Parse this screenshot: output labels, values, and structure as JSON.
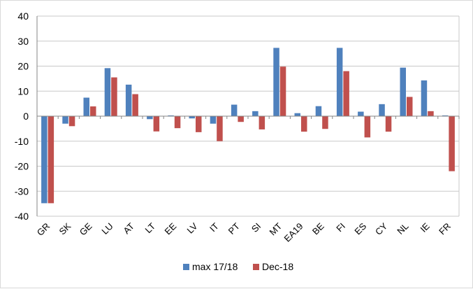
{
  "chart_data": {
    "type": "bar",
    "title": "",
    "xlabel": "",
    "ylabel": "",
    "ylim": [
      -40,
      40
    ],
    "yticks": [
      40,
      30,
      20,
      10,
      0,
      -10,
      -20,
      -30,
      -40
    ],
    "grid": true,
    "legend_position": "bottom",
    "categories": [
      "GR",
      "SK",
      "GE",
      "LU",
      "AT",
      "LT",
      "EE",
      "LV",
      "IT",
      "PT",
      "SI",
      "MT",
      "EA19",
      "BE",
      "FI",
      "ES",
      "CY",
      "NL",
      "IE",
      "FR"
    ],
    "series": [
      {
        "name": "max 17/18",
        "color": "#4f81bd",
        "values": [
          -34.8,
          -3.0,
          7.4,
          19.2,
          12.6,
          -1.2,
          0.3,
          -0.9,
          -3.0,
          4.6,
          2.0,
          27.3,
          1.2,
          4.0,
          27.3,
          1.8,
          4.8,
          19.4,
          14.3,
          0.3
        ]
      },
      {
        "name": "Dec-18",
        "color": "#c0504d",
        "values": [
          -34.8,
          -4.0,
          3.9,
          15.5,
          8.8,
          -6.1,
          -4.8,
          -6.4,
          -10.0,
          -2.3,
          -5.3,
          19.8,
          -6.2,
          -5.1,
          18.0,
          -8.5,
          -6.2,
          7.7,
          2.0,
          -22.0
        ]
      }
    ]
  }
}
